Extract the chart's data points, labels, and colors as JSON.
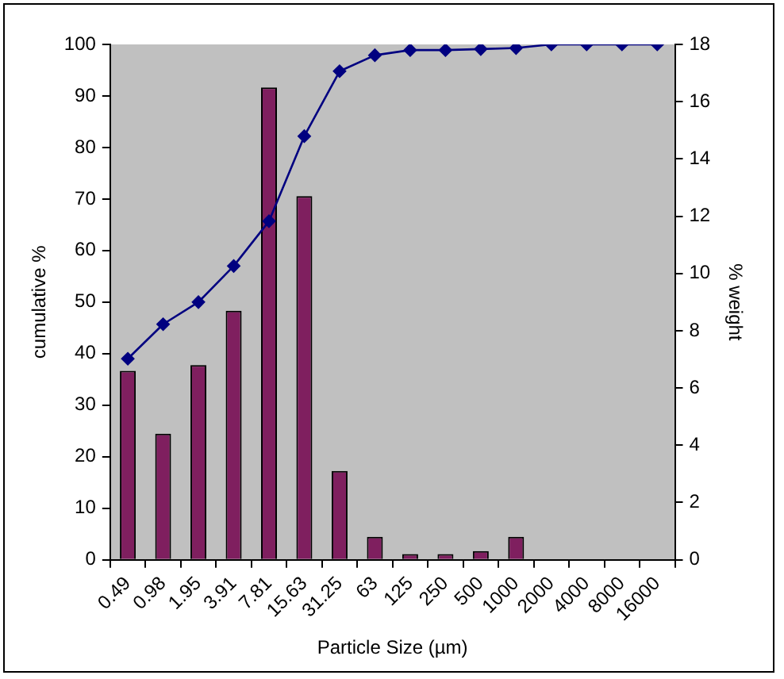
{
  "chart_data": {
    "type": "bar",
    "xlabel": "Particle Size (µm)",
    "ylabel": "cumulative %",
    "y2label": "% weight",
    "categories": [
      "0.49",
      "0.98",
      "1.95",
      "3.91",
      "7.81",
      "15.63",
      "31.25",
      "63",
      "125",
      "250",
      "500",
      "1000",
      "2000",
      "4000",
      "8000",
      "16000"
    ],
    "series": [
      {
        "axis": "y2",
        "color": "#7f1f5f",
        "values": [
          6.6,
          4.4,
          6.8,
          8.7,
          16.5,
          12.7,
          3.1,
          0.8,
          0.2,
          0.2,
          0.3,
          0.8,
          0,
          0,
          0,
          0
        ]
      },
      {
        "type": "line",
        "axis": "y",
        "color": "#000080",
        "marker": "diamond",
        "values": [
          39,
          45.7,
          50,
          57,
          65.7,
          82.2,
          94.8,
          97.9,
          98.9,
          98.9,
          99.1,
          99.3,
          100,
          100,
          100,
          100
        ]
      }
    ],
    "ylim": [
      0,
      100
    ],
    "yticks": [
      0,
      10,
      20,
      30,
      40,
      50,
      60,
      70,
      80,
      90,
      100
    ],
    "y2lim": [
      0,
      18
    ],
    "y2ticks": [
      0,
      2,
      4,
      6,
      8,
      10,
      12,
      14,
      16,
      18
    ],
    "grid": false,
    "legend": false
  }
}
